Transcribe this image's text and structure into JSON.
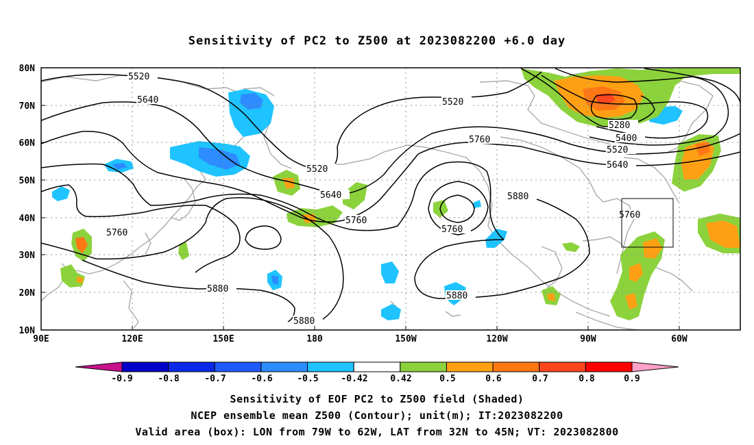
{
  "title": "Sensitivity of PC2 to Z500 at 2023082200 +6.0 day",
  "lat_labels": [
    "80N",
    "70N",
    "60N",
    "50N",
    "40N",
    "30N",
    "20N",
    "10N"
  ],
  "lon_labels": [
    "90E",
    "120E",
    "150E",
    "180",
    "150W",
    "120W",
    "90W",
    "60W"
  ],
  "contour_labels": [
    "5520",
    "5640",
    "5520",
    "5520",
    "5640",
    "5760",
    "5760",
    "5880",
    "5760",
    "5760",
    "5880",
    "5880",
    "5880",
    "5280",
    "5400",
    "5520",
    "5640",
    "5760"
  ],
  "colorbar": {
    "ticks": [
      "-0.9",
      "-0.8",
      "-0.7",
      "-0.6",
      "-0.5",
      "-0.42",
      "0.42",
      "0.5",
      "0.6",
      "0.7",
      "0.8",
      "0.9"
    ],
    "colors": [
      "#c7128c",
      "#0000c8",
      "#0a28e6",
      "#1e5aff",
      "#2d8cff",
      "#1ec3ff",
      "#ffffff",
      "#8cd23c",
      "#ffa014",
      "#ff7814",
      "#ff461e",
      "#ff0000",
      "#ffa0c8"
    ]
  },
  "captions": {
    "line1": "Sensitivity of EOF PC2 to Z500 field (Shaded)",
    "line2": "NCEP ensemble mean Z500 (Contour); unit(m); IT:2023082200",
    "line3": "Valid area (box): LON from 79W to 62W, LAT from 32N to 45N; VT: 2023082800"
  }
}
